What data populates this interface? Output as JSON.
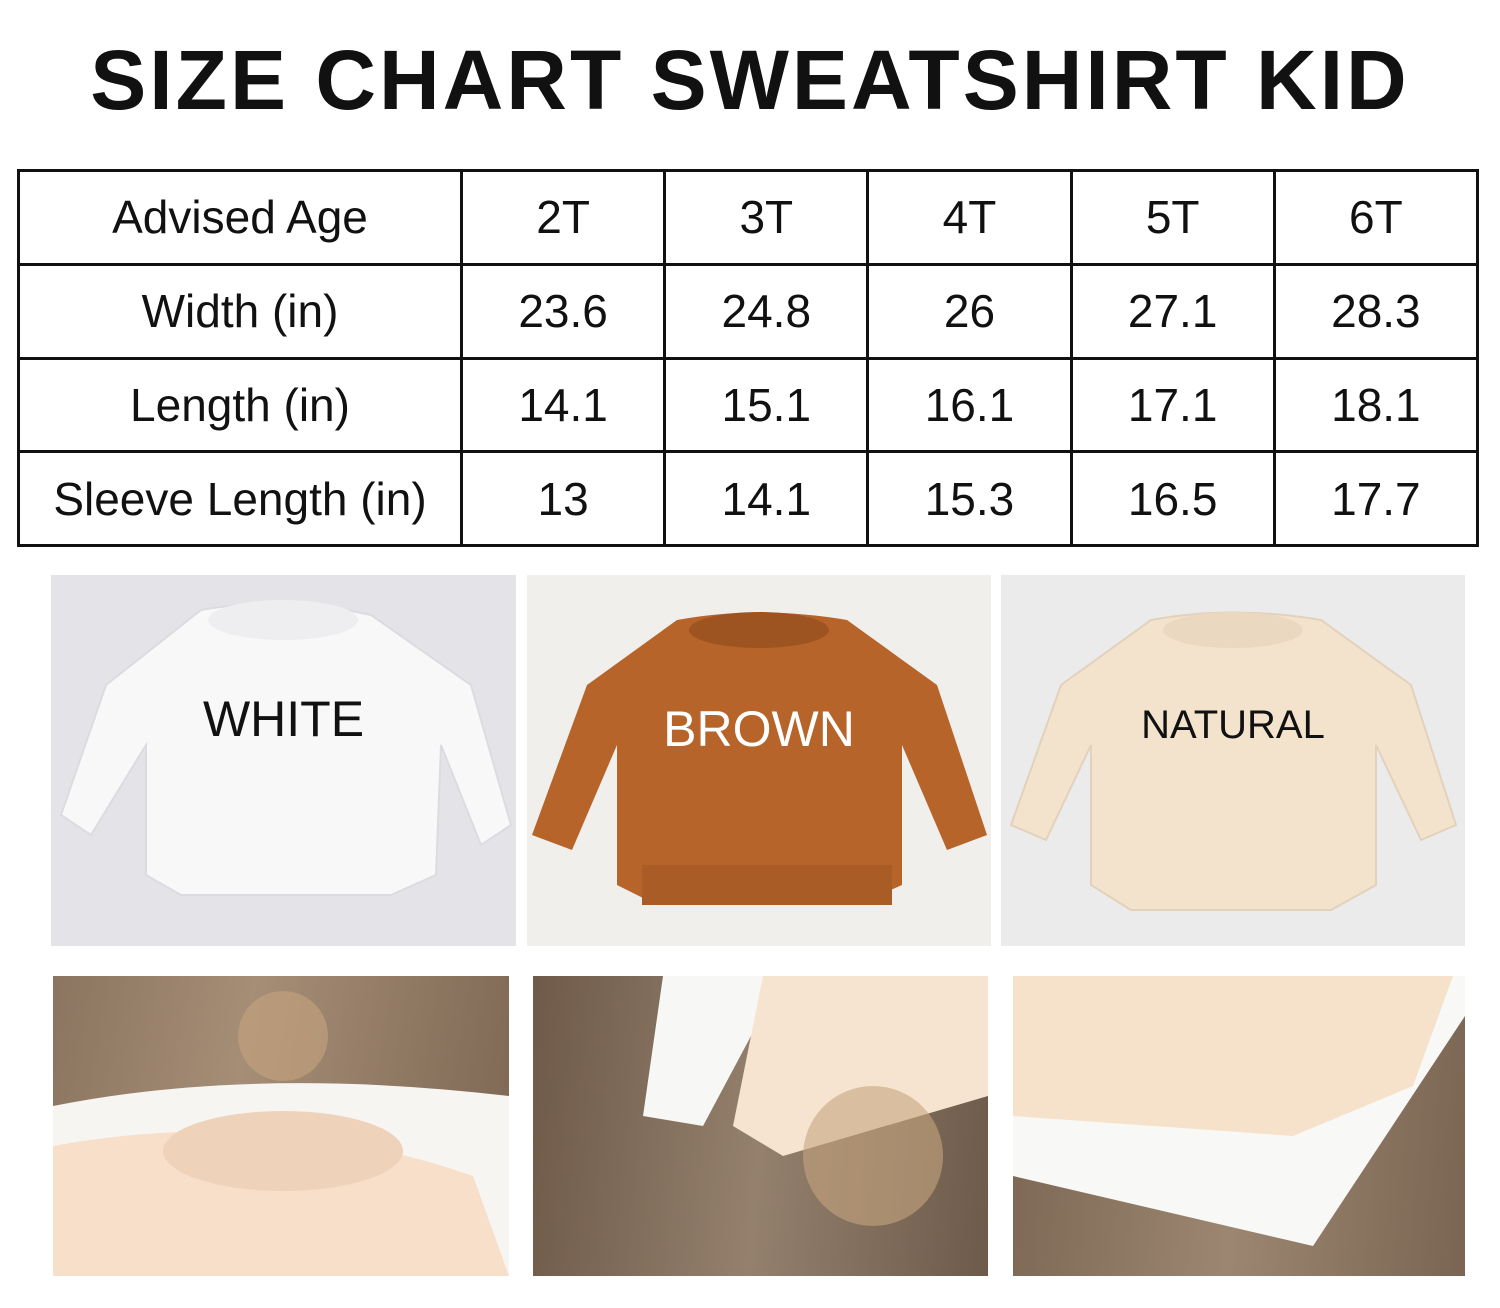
{
  "title": "SIZE CHART SWEATSHIRT KID",
  "table": {
    "header": [
      "Advised Age",
      "2T",
      "3T",
      "4T",
      "5T",
      "6T"
    ],
    "rows": [
      [
        "Width (in)",
        "23.6",
        "24.8",
        "26",
        "27.1",
        "28.3"
      ],
      [
        "Length (in)",
        "14.1",
        "15.1",
        "16.1",
        "17.1",
        "18.1"
      ],
      [
        "Sleeve Length (in)",
        "13",
        "14.1",
        "15.3",
        "16.5",
        "17.7"
      ]
    ]
  },
  "colors": [
    {
      "label": "WHITE",
      "shirt": "#f7f7f8",
      "bg": "#e4e4e8",
      "text": "#111111"
    },
    {
      "label": "BROWN",
      "shirt": "#b6642a",
      "bg": "#f1efec",
      "text": "#ffffff"
    },
    {
      "label": "NATURAL",
      "shirt": "#f3e3cd",
      "bg": "#ecebeb",
      "text": "#111111"
    }
  ]
}
